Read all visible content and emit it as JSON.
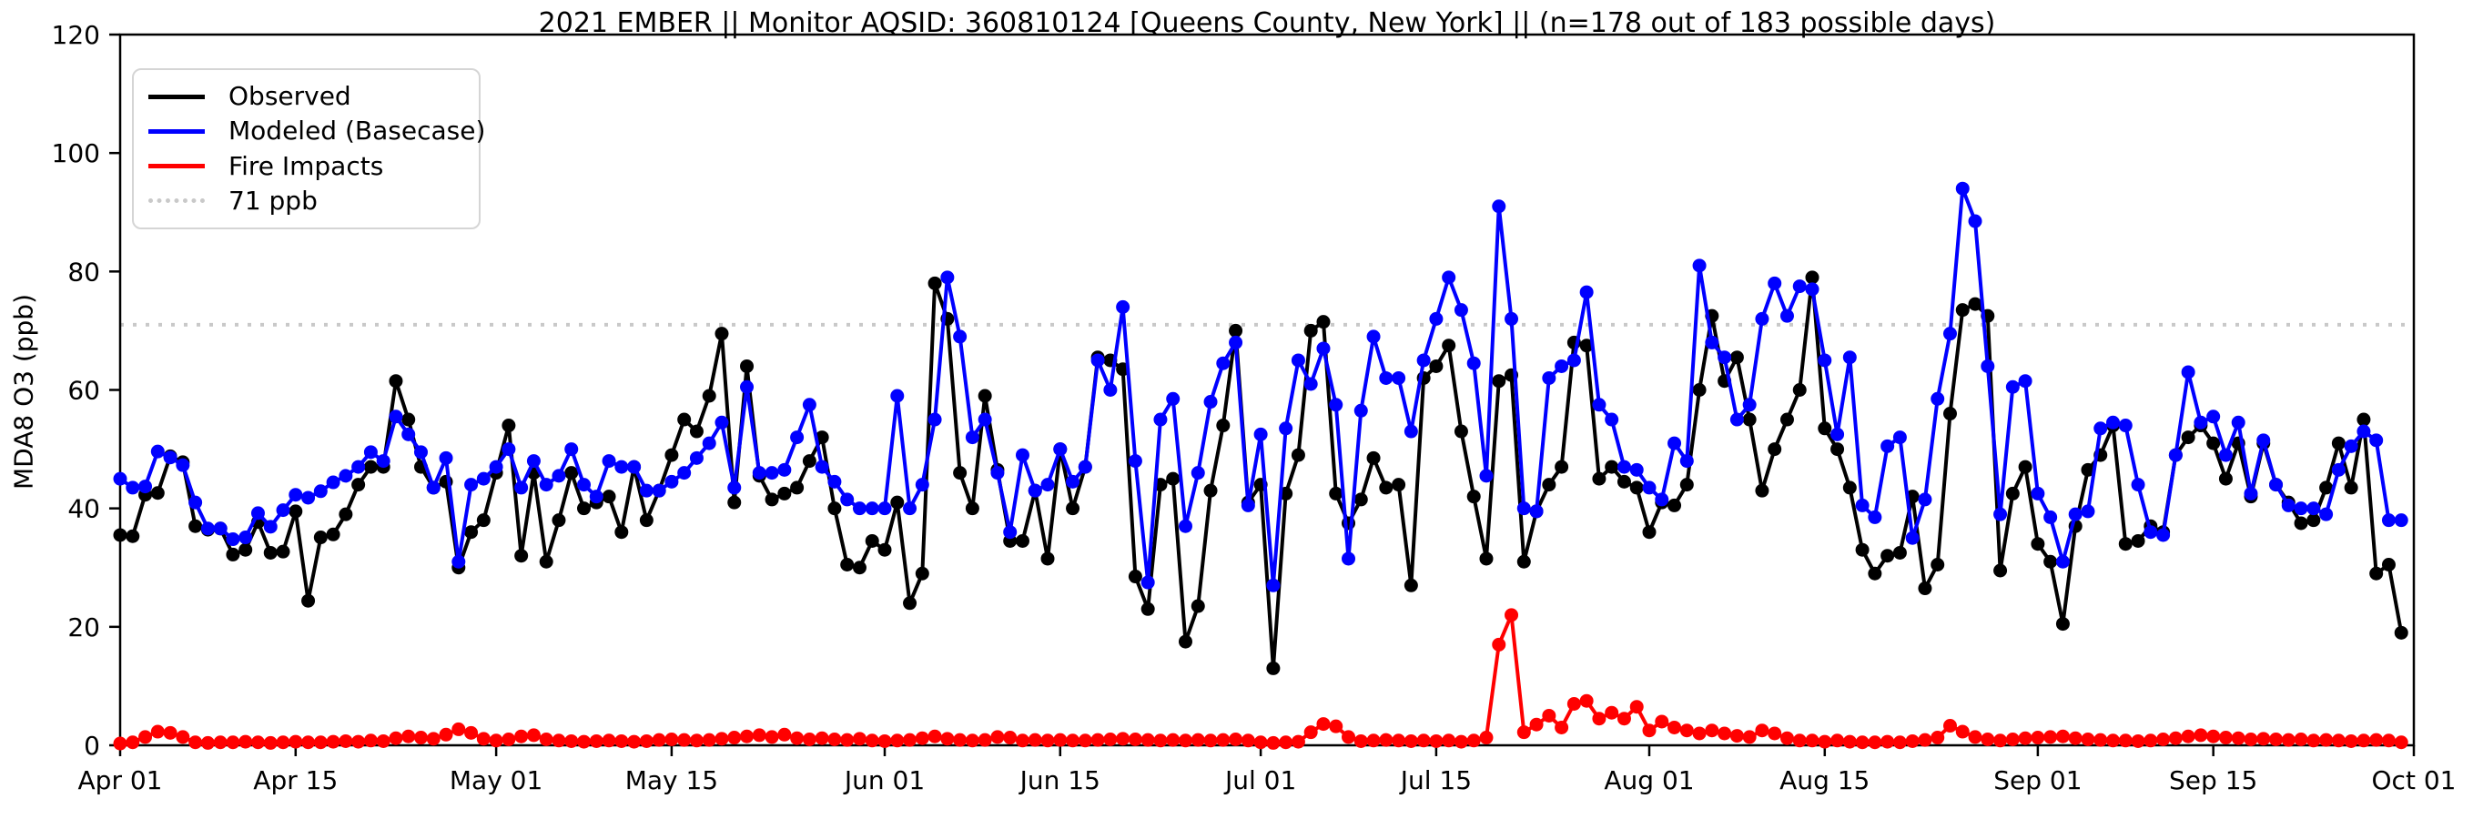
{
  "chart_data": {
    "type": "line",
    "title": "2021 EMBER || Monitor AQSID: 360810124 [Queens County, New York] || (n=178 out of 183 possible days)",
    "ylabel": "MDA8 O3 (ppb)",
    "ylim": [
      0,
      120
    ],
    "yticks": [
      0,
      20,
      40,
      60,
      80,
      100,
      120
    ],
    "xtick_labels": [
      "Apr 01",
      "Apr 15",
      "May 01",
      "May 15",
      "Jun 01",
      "Jun 15",
      "Jul 01",
      "Jul 15",
      "Aug 01",
      "Aug 15",
      "Sep 01",
      "Sep 15",
      "Oct 01"
    ],
    "xtick_day_offsets": [
      0,
      14,
      30,
      44,
      61,
      75,
      91,
      105,
      122,
      136,
      153,
      167,
      183
    ],
    "x_span_days": 183,
    "grid": false,
    "legend_position": "upper left",
    "background": "#ffffff",
    "threshold": {
      "value": 71,
      "label": "71 ppb",
      "color": "#c9c9c9",
      "style": "dotted"
    },
    "series": [
      {
        "name": "Observed",
        "color": "#000000",
        "values": [
          35.5,
          35.3,
          42.3,
          42.6,
          48.8,
          47.8,
          37,
          36.4,
          36.6,
          32.2,
          33,
          37.7,
          32.5,
          32.7,
          39.5,
          24.4,
          35.1,
          35.6,
          39,
          44,
          47,
          47,
          61.5,
          55,
          47,
          43.5,
          44.5,
          30,
          36,
          38,
          46,
          54,
          32,
          46,
          31,
          38,
          46,
          40,
          41,
          42,
          36,
          47,
          38,
          43,
          49,
          55,
          53,
          59,
          69.5,
          41,
          64,
          45.5,
          41.5,
          42.5,
          43.5,
          48,
          52,
          40,
          30.5,
          30,
          34.5,
          33,
          41,
          24,
          29,
          78,
          72,
          46,
          40,
          59,
          46.5,
          34.5,
          34.5,
          43,
          31.5,
          50,
          40,
          47,
          65.5,
          65,
          63.5,
          28.5,
          23,
          44,
          45,
          17.5,
          23.5,
          43,
          54,
          70,
          41,
          44,
          13,
          42.5,
          49,
          70,
          71.5,
          42.5,
          37.5,
          41.5,
          48.5,
          43.5,
          44,
          27,
          62,
          64,
          67.5,
          53,
          42,
          31.5,
          61.5,
          62.5,
          31,
          39.5,
          44,
          47,
          68,
          67.5,
          45,
          47,
          44.5,
          43.5,
          36,
          41,
          40.5,
          44,
          60,
          72.5,
          61.5,
          65.5,
          55,
          43,
          50,
          55,
          60,
          79,
          53.5,
          50,
          43.5,
          33,
          29,
          32,
          32.5,
          42,
          26.5,
          30.5,
          56,
          73.5,
          74.5,
          72.5,
          29.5,
          42.5,
          47,
          34,
          31,
          20.5,
          37,
          46.5,
          49,
          54,
          34,
          34.5,
          37,
          36,
          49,
          52,
          54,
          51,
          45,
          51,
          42,
          51,
          44,
          41,
          37.5,
          38,
          43.5,
          51,
          43.5,
          55,
          29,
          30.5,
          19
        ]
      },
      {
        "name": "Modeled (Basecase)",
        "color": "#0000ff",
        "values": [
          45,
          43.5,
          43.7,
          49.6,
          48.6,
          47.3,
          41,
          36.6,
          36.6,
          34.8,
          35.1,
          39.2,
          36.9,
          39.7,
          42.3,
          41.8,
          42.9,
          44.4,
          45.5,
          47,
          49.5,
          48,
          55.5,
          52.5,
          49.5,
          43.5,
          48.5,
          31,
          44,
          45,
          47,
          50,
          43.5,
          48,
          44,
          45.5,
          50,
          44,
          42,
          48,
          47,
          47,
          43,
          43,
          44.5,
          46,
          48.5,
          51,
          54.5,
          43.5,
          60.5,
          46,
          46,
          46.5,
          52,
          57.5,
          47,
          44.5,
          41.5,
          40,
          40,
          40,
          59,
          40,
          44,
          55,
          79,
          69,
          52,
          55,
          46,
          36,
          49,
          43,
          44,
          50,
          44.5,
          47,
          65,
          60,
          74,
          48,
          27.5,
          55,
          58.5,
          37,
          46,
          58,
          64.5,
          68,
          40.5,
          52.5,
          27,
          53.5,
          65,
          61,
          67,
          57.5,
          31.5,
          56.5,
          69,
          62,
          62,
          53,
          65,
          72,
          79,
          73.5,
          64.5,
          45.5,
          91,
          72,
          40,
          39.5,
          62,
          64,
          65,
          76.5,
          57.5,
          55,
          47,
          46.5,
          43.5,
          41.5,
          51,
          48,
          81,
          68,
          65.5,
          55,
          57.5,
          72,
          78,
          72.5,
          77.5,
          77,
          65,
          52.5,
          65.5,
          40.5,
          38.5,
          50.5,
          52,
          35,
          41.5,
          58.5,
          69.5,
          94,
          88.5,
          64,
          39,
          60.5,
          61.5,
          42.5,
          38.5,
          31,
          39,
          39.5,
          53.5,
          54.5,
          54,
          44,
          36,
          35.5,
          49,
          63,
          54.5,
          55.5,
          49,
          54.5,
          42.5,
          51.5,
          44,
          40.5,
          40,
          40,
          39,
          46.5,
          50.5,
          53,
          51.5,
          38,
          38
        ]
      },
      {
        "name": "Fire Impacts",
        "color": "#ff0000",
        "values": [
          0.3,
          0.5,
          1.4,
          2.3,
          2.1,
          1.4,
          0.5,
          0.4,
          0.5,
          0.5,
          0.6,
          0.5,
          0.4,
          0.5,
          0.6,
          0.5,
          0.5,
          0.6,
          0.7,
          0.6,
          0.8,
          0.7,
          1.2,
          1.5,
          1.3,
          1.1,
          1.8,
          2.7,
          2.1,
          1.1,
          0.8,
          1.0,
          1.5,
          1.7,
          1.0,
          0.8,
          0.7,
          0.6,
          0.7,
          0.8,
          0.7,
          0.6,
          0.7,
          0.9,
          1.0,
          0.9,
          0.8,
          0.9,
          1.1,
          1.3,
          1.5,
          1.7,
          1.4,
          1.8,
          1.2,
          1.0,
          1.2,
          1.0,
          0.9,
          1.1,
          0.8,
          0.7,
          0.8,
          0.9,
          1.2,
          1.5,
          1.1,
          0.9,
          0.8,
          0.9,
          1.4,
          1.3,
          0.8,
          0.9,
          0.8,
          0.9,
          0.8,
          0.8,
          0.9,
          1.0,
          1.1,
          1.0,
          0.9,
          0.8,
          0.9,
          0.8,
          0.9,
          0.8,
          0.9,
          1.0,
          0.8,
          0.5,
          0.4,
          0.5,
          0.6,
          2.2,
          3.6,
          3.2,
          1.4,
          0.7,
          0.8,
          0.9,
          0.8,
          0.7,
          0.8,
          0.7,
          0.8,
          0.6,
          0.8,
          1.3,
          17,
          22,
          2.2,
          3.5,
          5,
          3,
          7,
          7.5,
          4.5,
          5.5,
          4.5,
          6.5,
          2.5,
          4,
          3,
          2.5,
          2,
          2.5,
          2,
          1.6,
          1.4,
          2.5,
          2,
          1.2,
          0.8,
          0.8,
          0.6,
          0.8,
          0.6,
          0.5,
          0.5,
          0.6,
          0.5,
          0.7,
          0.9,
          1.3,
          3.3,
          2.3,
          1.4,
          1.0,
          0.8,
          1.0,
          1.2,
          1.3,
          1.4,
          1.5,
          1.2,
          1.0,
          0.9,
          0.8,
          0.8,
          0.7,
          0.8,
          1.0,
          1.2,
          1.5,
          1.7,
          1.5,
          1.3,
          1.2,
          1.0,
          1.1,
          1.0,
          0.9,
          1.0,
          0.8,
          0.9,
          0.8,
          0.7,
          0.8,
          0.9,
          0.8,
          0.5
        ]
      }
    ],
    "axis_color": "#000000",
    "tick_font_size": 28,
    "marker_radius": 7.5,
    "line_width": 4
  }
}
